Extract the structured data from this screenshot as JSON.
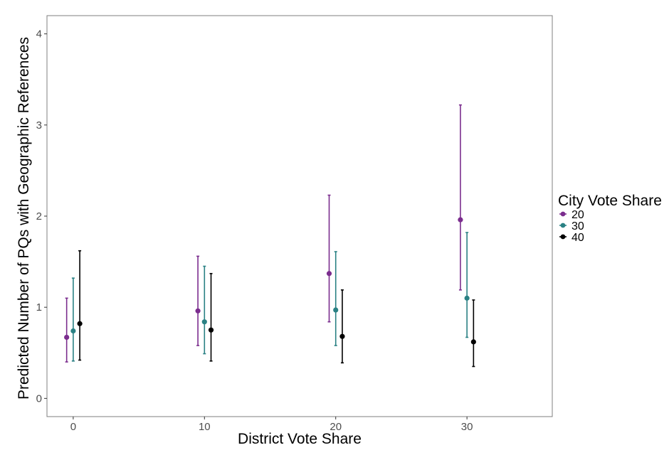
{
  "chart_data": {
    "type": "scatter",
    "subtype": "point-range",
    "title": "",
    "xlabel": "District Vote Share",
    "ylabel": "Predicted Number of PQs with Geographic References",
    "x_ticks": [
      0,
      10,
      20,
      30
    ],
    "y_ticks": [
      0,
      1,
      2,
      3,
      4
    ],
    "xlim": [
      -2,
      36.5
    ],
    "ylim": [
      -0.2,
      4.2
    ],
    "grid": false,
    "legend": {
      "title": "City Vote Share",
      "position": "right"
    },
    "series": [
      {
        "name": "20",
        "color": "#7B2D8E",
        "x": [
          0,
          10,
          20,
          30
        ],
        "y": [
          0.67,
          0.96,
          1.37,
          1.96
        ],
        "lower": [
          0.4,
          0.58,
          0.84,
          1.19
        ],
        "upper": [
          1.1,
          1.56,
          2.23,
          3.22
        ]
      },
      {
        "name": "30",
        "color": "#2A8184",
        "x": [
          0,
          10,
          20,
          30
        ],
        "y": [
          0.74,
          0.84,
          0.97,
          1.1
        ],
        "lower": [
          0.41,
          0.49,
          0.58,
          0.67
        ],
        "upper": [
          1.32,
          1.45,
          1.61,
          1.82
        ]
      },
      {
        "name": "40",
        "color": "#000000",
        "x": [
          0,
          10,
          20,
          30
        ],
        "y": [
          0.82,
          0.75,
          0.68,
          0.62
        ],
        "lower": [
          0.42,
          0.41,
          0.39,
          0.35
        ],
        "upper": [
          1.62,
          1.37,
          1.19,
          1.08
        ]
      }
    ]
  }
}
